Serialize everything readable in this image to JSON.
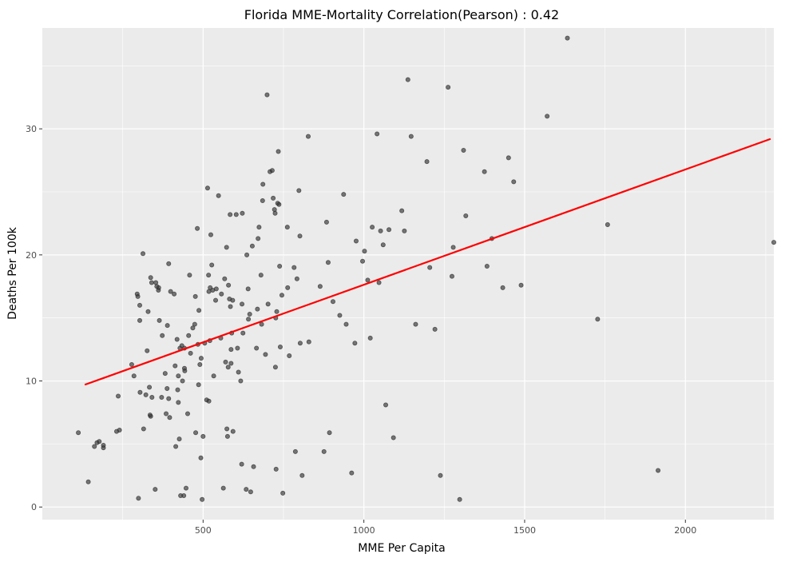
{
  "chart_data": {
    "type": "scatter",
    "title": "Florida MME-Mortality Correlation(Pearson) : 0.42",
    "xlabel": "MME Per Capita",
    "ylabel": "Deaths Per 100k",
    "xlim": [
      0,
      2275
    ],
    "ylim": [
      -1,
      38
    ],
    "x_ticks": [
      500,
      1000,
      1500,
      2000
    ],
    "x_tick_labels": [
      "500",
      "1000",
      "1500",
      "2000"
    ],
    "y_ticks": [
      0,
      10,
      20,
      30
    ],
    "y_tick_labels": [
      "0",
      "10",
      "20",
      "30"
    ],
    "grid": true,
    "colors": {
      "panel": "#ebebeb",
      "grid": "#ffffff",
      "points": "#333333",
      "trend": "#ff0000"
    },
    "trend_line": {
      "x": [
        132,
        2265
      ],
      "y": [
        9.7,
        29.2
      ]
    },
    "points": [
      [
        112,
        5.9
      ],
      [
        143,
        2.0
      ],
      [
        162,
        4.8
      ],
      [
        170,
        5.1
      ],
      [
        177,
        5.2
      ],
      [
        190,
        4.7
      ],
      [
        190,
        4.9
      ],
      [
        231,
        6.0
      ],
      [
        236,
        8.8
      ],
      [
        240,
        6.1
      ],
      [
        278,
        11.3
      ],
      [
        285,
        10.4
      ],
      [
        295,
        16.9
      ],
      [
        297,
        16.7
      ],
      [
        299,
        0.7
      ],
      [
        303,
        16.0
      ],
      [
        303,
        14.8
      ],
      [
        304,
        9.1
      ],
      [
        313,
        20.1
      ],
      [
        315,
        6.2
      ],
      [
        322,
        8.9
      ],
      [
        326,
        12.4
      ],
      [
        329,
        15.5
      ],
      [
        333,
        9.5
      ],
      [
        335,
        7.3
      ],
      [
        337,
        7.2
      ],
      [
        337,
        18.2
      ],
      [
        340,
        17.8
      ],
      [
        341,
        8.7
      ],
      [
        351,
        1.4
      ],
      [
        353,
        17.8
      ],
      [
        356,
        17.5
      ],
      [
        361,
        17.2
      ],
      [
        362,
        17.4
      ],
      [
        364,
        14.8
      ],
      [
        371,
        8.7
      ],
      [
        373,
        13.6
      ],
      [
        382,
        10.6
      ],
      [
        385,
        7.4
      ],
      [
        388,
        9.4
      ],
      [
        389,
        14.4
      ],
      [
        393,
        19.3
      ],
      [
        393,
        8.6
      ],
      [
        396,
        7.1
      ],
      [
        399,
        17.1
      ],
      [
        410,
        16.9
      ],
      [
        413,
        11.2
      ],
      [
        415,
        4.8
      ],
      [
        419,
        13.3
      ],
      [
        421,
        9.3
      ],
      [
        423,
        8.3
      ],
      [
        423,
        10.4
      ],
      [
        426,
        5.4
      ],
      [
        428,
        12.6
      ],
      [
        430,
        0.9
      ],
      [
        434,
        12.8
      ],
      [
        436,
        10.0
      ],
      [
        440,
        0.9
      ],
      [
        442,
        12.6
      ],
      [
        442,
        11.0
      ],
      [
        443,
        10.8
      ],
      [
        447,
        1.5
      ],
      [
        452,
        7.4
      ],
      [
        455,
        13.6
      ],
      [
        458,
        18.4
      ],
      [
        461,
        12.2
      ],
      [
        468,
        14.2
      ],
      [
        474,
        14.5
      ],
      [
        476,
        16.7
      ],
      [
        477,
        5.9
      ],
      [
        482,
        22.1
      ],
      [
        484,
        12.9
      ],
      [
        486,
        9.7
      ],
      [
        487,
        15.6
      ],
      [
        490,
        11.3
      ],
      [
        493,
        3.9
      ],
      [
        494,
        11.8
      ],
      [
        497,
        0.6
      ],
      [
        500,
        5.6
      ],
      [
        505,
        13.0
      ],
      [
        511,
        8.5
      ],
      [
        514,
        25.3
      ],
      [
        517,
        18.4
      ],
      [
        518,
        17.1
      ],
      [
        518,
        8.4
      ],
      [
        521,
        13.2
      ],
      [
        522,
        17.4
      ],
      [
        524,
        21.6
      ],
      [
        527,
        19.2
      ],
      [
        530,
        17.2
      ],
      [
        533,
        10.4
      ],
      [
        539,
        16.4
      ],
      [
        541,
        17.3
      ],
      [
        548,
        24.7
      ],
      [
        555,
        13.4
      ],
      [
        557,
        16.9
      ],
      [
        563,
        1.5
      ],
      [
        567,
        18.1
      ],
      [
        570,
        11.5
      ],
      [
        573,
        20.6
      ],
      [
        574,
        6.2
      ],
      [
        576,
        5.6
      ],
      [
        578,
        11.1
      ],
      [
        579,
        17.6
      ],
      [
        582,
        16.5
      ],
      [
        584,
        23.2
      ],
      [
        585,
        15.9
      ],
      [
        587,
        12.5
      ],
      [
        587,
        11.4
      ],
      [
        589,
        13.8
      ],
      [
        592,
        16.4
      ],
      [
        593,
        6.0
      ],
      [
        603,
        23.2
      ],
      [
        607,
        12.6
      ],
      [
        610,
        10.7
      ],
      [
        617,
        10.0
      ],
      [
        620,
        3.4
      ],
      [
        621,
        16.1
      ],
      [
        622,
        23.3
      ],
      [
        624,
        13.8
      ],
      [
        634,
        1.4
      ],
      [
        636,
        20.0
      ],
      [
        640,
        17.3
      ],
      [
        641,
        14.9
      ],
      [
        645,
        15.3
      ],
      [
        648,
        1.2
      ],
      [
        653,
        20.7
      ],
      [
        657,
        3.2
      ],
      [
        666,
        12.6
      ],
      [
        669,
        15.7
      ],
      [
        671,
        21.3
      ],
      [
        674,
        22.2
      ],
      [
        680,
        18.4
      ],
      [
        682,
        14.5
      ],
      [
        685,
        24.3
      ],
      [
        686,
        25.6
      ],
      [
        694,
        12.1
      ],
      [
        699,
        32.7
      ],
      [
        702,
        16.1
      ],
      [
        708,
        26.6
      ],
      [
        715,
        26.7
      ],
      [
        718,
        24.5
      ],
      [
        722,
        23.6
      ],
      [
        724,
        23.3
      ],
      [
        725,
        11.1
      ],
      [
        726,
        15.0
      ],
      [
        727,
        3.0
      ],
      [
        729,
        15.5
      ],
      [
        732,
        24.1
      ],
      [
        734,
        28.2
      ],
      [
        736,
        24.0
      ],
      [
        738,
        19.1
      ],
      [
        740,
        12.7
      ],
      [
        745,
        16.8
      ],
      [
        748,
        1.1
      ],
      [
        762,
        22.2
      ],
      [
        763,
        17.4
      ],
      [
        768,
        12.0
      ],
      [
        783,
        19.0
      ],
      [
        787,
        4.4
      ],
      [
        792,
        18.1
      ],
      [
        798,
        25.1
      ],
      [
        801,
        21.5
      ],
      [
        802,
        13.0
      ],
      [
        808,
        2.5
      ],
      [
        827,
        29.4
      ],
      [
        829,
        13.1
      ],
      [
        864,
        17.5
      ],
      [
        876,
        4.4
      ],
      [
        884,
        22.6
      ],
      [
        889,
        19.4
      ],
      [
        893,
        5.9
      ],
      [
        904,
        16.3
      ],
      [
        925,
        15.2
      ],
      [
        937,
        24.8
      ],
      [
        945,
        14.5
      ],
      [
        962,
        2.7
      ],
      [
        972,
        13.0
      ],
      [
        976,
        21.1
      ],
      [
        996,
        19.5
      ],
      [
        1002,
        20.3
      ],
      [
        1012,
        18.0
      ],
      [
        1020,
        13.4
      ],
      [
        1026,
        22.2
      ],
      [
        1041,
        29.6
      ],
      [
        1047,
        17.8
      ],
      [
        1052,
        21.9
      ],
      [
        1060,
        20.8
      ],
      [
        1068,
        8.1
      ],
      [
        1078,
        22.0
      ],
      [
        1092,
        5.5
      ],
      [
        1118,
        23.5
      ],
      [
        1126,
        21.9
      ],
      [
        1137,
        33.9
      ],
      [
        1147,
        29.4
      ],
      [
        1161,
        14.5
      ],
      [
        1196,
        27.4
      ],
      [
        1205,
        19.0
      ],
      [
        1221,
        14.1
      ],
      [
        1238,
        2.5
      ],
      [
        1262,
        33.3
      ],
      [
        1274,
        18.3
      ],
      [
        1278,
        20.6
      ],
      [
        1298,
        0.6
      ],
      [
        1310,
        28.3
      ],
      [
        1317,
        23.1
      ],
      [
        1375,
        26.6
      ],
      [
        1383,
        19.1
      ],
      [
        1398,
        21.3
      ],
      [
        1432,
        17.4
      ],
      [
        1450,
        27.7
      ],
      [
        1466,
        25.8
      ],
      [
        1489,
        17.6
      ],
      [
        1570,
        31.0
      ],
      [
        1633,
        37.2
      ],
      [
        1727,
        14.9
      ],
      [
        1758,
        22.4
      ],
      [
        1915,
        2.9
      ],
      [
        2275,
        21.0
      ]
    ]
  }
}
